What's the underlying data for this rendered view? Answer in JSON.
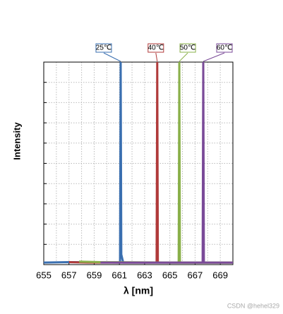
{
  "chart_data": {
    "type": "line",
    "xlabel": "λ  [nm]",
    "ylabel": "Intensity",
    "xlim": [
      655,
      670
    ],
    "ylim": [
      0,
      10
    ],
    "xticks": [
      655,
      657,
      659,
      661,
      663,
      665,
      667,
      669
    ],
    "xgrid": [
      656,
      657,
      658,
      659,
      660,
      661,
      662,
      663,
      664,
      665,
      666,
      667,
      668,
      669
    ],
    "ygrid": [
      1,
      2,
      3,
      4,
      5,
      6,
      7,
      8,
      9
    ],
    "series": [
      {
        "name": "25℃",
        "color": "#3a6fb0",
        "x": [
          655,
          657,
          661.05,
          661.1,
          661.15,
          661.3,
          670
        ],
        "y": [
          0.1,
          0.12,
          0.1,
          10,
          0.5,
          0.1,
          0.1
        ]
      },
      {
        "name": "40℃",
        "color": "#b03a3a",
        "x": [
          657,
          658.5,
          663.95,
          664.0,
          664.05,
          670
        ],
        "y": [
          0.12,
          0.1,
          0.1,
          10,
          0.1,
          0.1
        ]
      },
      {
        "name": "50℃",
        "color": "#8ab04a",
        "x": [
          657.8,
          659.5,
          665.7,
          665.75,
          665.8,
          670
        ],
        "y": [
          0.15,
          0.12,
          0.1,
          10,
          0.1,
          0.1
        ]
      },
      {
        "name": "60℃",
        "color": "#7a4a98",
        "x": [
          659.5,
          667.6,
          667.65,
          667.7,
          670
        ],
        "y": [
          0.1,
          0.1,
          10,
          0.1,
          0.1
        ]
      }
    ],
    "watermark": "CSDN @hehel329"
  }
}
